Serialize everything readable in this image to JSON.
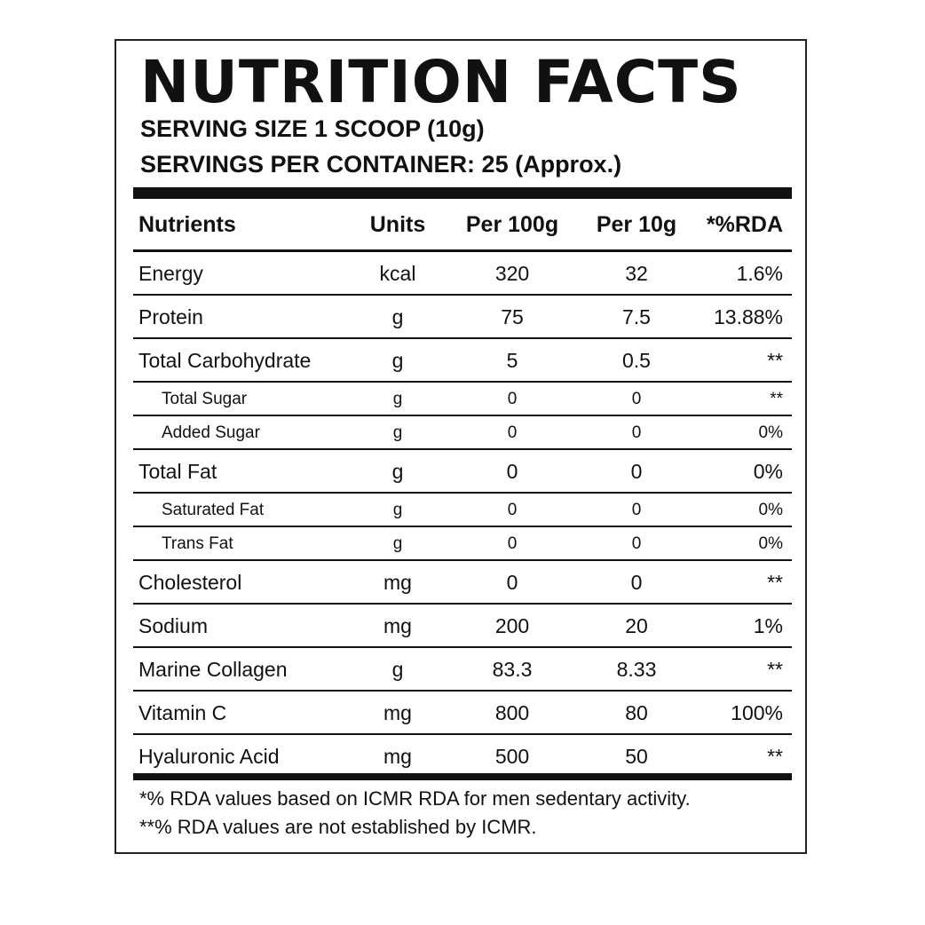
{
  "label": {
    "title": "NUTRITION FACTS",
    "serving_size": "SERVING SIZE 1 SCOOP (10g)",
    "servings_per_container": "SERVINGS PER CONTAINER: 25 (Approx.)"
  },
  "table": {
    "headers": {
      "nutrients": "Nutrients",
      "units": "Units",
      "per100": "Per 100g",
      "per10": "Per 10g",
      "rda": "*%RDA"
    },
    "rows": [
      {
        "name": "Energy",
        "unit": "kcal",
        "per100": "320",
        "per10": "32",
        "rda": "1.6%",
        "sub": false
      },
      {
        "name": "Protein",
        "unit": "g",
        "per100": "75",
        "per10": "7.5",
        "rda": "13.88%",
        "sub": false
      },
      {
        "name": "Total Carbohydrate",
        "unit": "g",
        "per100": "5",
        "per10": "0.5",
        "rda": "**",
        "sub": false
      },
      {
        "name": "Total Sugar",
        "unit": "g",
        "per100": "0",
        "per10": "0",
        "rda": "**",
        "sub": true
      },
      {
        "name": "Added Sugar",
        "unit": "g",
        "per100": "0",
        "per10": "0",
        "rda": "0%",
        "sub": true
      },
      {
        "name": "Total Fat",
        "unit": "g",
        "per100": "0",
        "per10": "0",
        "rda": "0%",
        "sub": false
      },
      {
        "name": "Saturated Fat",
        "unit": "g",
        "per100": "0",
        "per10": "0",
        "rda": "0%",
        "sub": true
      },
      {
        "name": "Trans Fat",
        "unit": "g",
        "per100": "0",
        "per10": "0",
        "rda": "0%",
        "sub": true
      },
      {
        "name": "Cholesterol",
        "unit": "mg",
        "per100": "0",
        "per10": "0",
        "rda": "**",
        "sub": false
      },
      {
        "name": "Sodium",
        "unit": "mg",
        "per100": "200",
        "per10": "20",
        "rda": "1%",
        "sub": false
      },
      {
        "name": "Marine Collagen",
        "unit": "g",
        "per100": "83.3",
        "per10": "8.33",
        "rda": "**",
        "sub": false
      },
      {
        "name": "Vitamin C",
        "unit": "mg",
        "per100": "800",
        "per10": "80",
        "rda": "100%",
        "sub": false
      },
      {
        "name": "Hyaluronic Acid",
        "unit": "mg",
        "per100": "500",
        "per10": "50",
        "rda": "**",
        "sub": false
      }
    ]
  },
  "footnotes": {
    "note1": "*% RDA values based on ICMR RDA for men sedentary activity.",
    "note2": "**% RDA values are not established by ICMR."
  },
  "colors": {
    "ink": "#111111",
    "background": "#ffffff"
  }
}
